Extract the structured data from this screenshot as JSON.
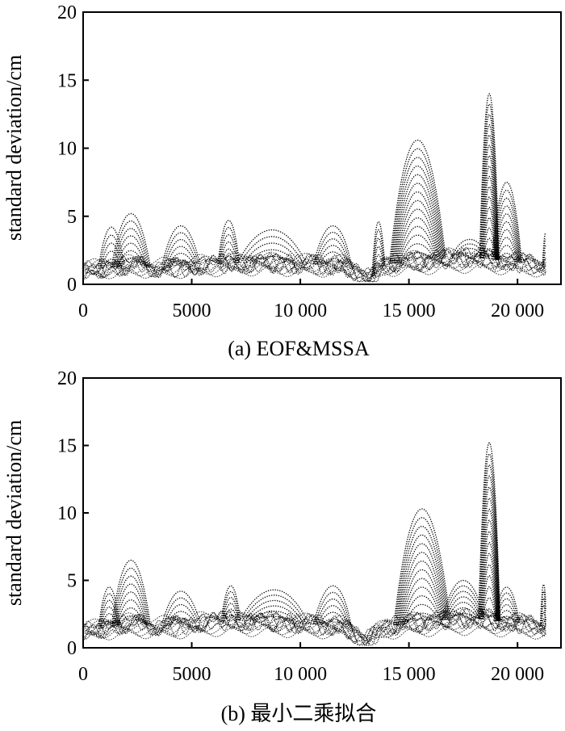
{
  "chart_data": [
    {
      "type": "line",
      "caption": "(a) EOF&MSSA",
      "ylabel": "standard deviation/cm",
      "xlabel": "",
      "xlim": [
        0,
        22000
      ],
      "ylim": [
        0,
        20
      ],
      "xticks": [
        0,
        5000,
        10000,
        15000,
        20000
      ],
      "xtick_labels": [
        "0",
        "5000",
        "10 000",
        "15 000",
        "20 000"
      ],
      "yticks": [
        0,
        5,
        10,
        15,
        20
      ],
      "ytick_labels": [
        "0",
        "5",
        "10",
        "15",
        "20"
      ],
      "grid": false,
      "marker_style": "dense dotted curves",
      "data_end_x": 21300,
      "floor": [
        {
          "x": 0,
          "y": 1.0
        },
        {
          "x": 2000,
          "y": 1.4
        },
        {
          "x": 4000,
          "y": 1.2
        },
        {
          "x": 6000,
          "y": 1.5
        },
        {
          "x": 8000,
          "y": 1.6
        },
        {
          "x": 10000,
          "y": 1.5
        },
        {
          "x": 12000,
          "y": 1.4
        },
        {
          "x": 13200,
          "y": 0.4
        },
        {
          "x": 14000,
          "y": 1.5
        },
        {
          "x": 16000,
          "y": 1.8
        },
        {
          "x": 18000,
          "y": 2.0
        },
        {
          "x": 20000,
          "y": 1.6
        },
        {
          "x": 21300,
          "y": 1.4
        }
      ],
      "peaks": [
        {
          "x": 1300,
          "y": 4.2,
          "width": 600
        },
        {
          "x": 2200,
          "y": 5.2,
          "width": 900
        },
        {
          "x": 4500,
          "y": 4.3,
          "width": 900
        },
        {
          "x": 6700,
          "y": 4.7,
          "width": 500
        },
        {
          "x": 8700,
          "y": 4.0,
          "width": 1600
        },
        {
          "x": 11500,
          "y": 4.3,
          "width": 900
        },
        {
          "x": 13600,
          "y": 4.6,
          "width": 300
        },
        {
          "x": 15400,
          "y": 10.6,
          "width": 1300
        },
        {
          "x": 17800,
          "y": 3.3,
          "width": 900
        },
        {
          "x": 18700,
          "y": 14.0,
          "width": 450
        },
        {
          "x": 19500,
          "y": 7.5,
          "width": 700
        },
        {
          "x": 21300,
          "y": 3.8,
          "width": 150
        }
      ]
    },
    {
      "type": "line",
      "caption": "(b) 最小二乘拟合",
      "ylabel": "standard deviation/cm",
      "xlabel": "",
      "xlim": [
        0,
        22000
      ],
      "ylim": [
        0,
        20
      ],
      "xticks": [
        0,
        5000,
        10000,
        15000,
        20000
      ],
      "xtick_labels": [
        "0",
        "5000",
        "10 000",
        "15 000",
        "20 000"
      ],
      "yticks": [
        0,
        5,
        10,
        15,
        20
      ],
      "ytick_labels": [
        "0",
        "5",
        "10",
        "15",
        "20"
      ],
      "grid": false,
      "marker_style": "dense dotted curves",
      "data_end_x": 21300,
      "floor": [
        {
          "x": 0,
          "y": 1.2
        },
        {
          "x": 2000,
          "y": 1.8
        },
        {
          "x": 4000,
          "y": 1.6
        },
        {
          "x": 6000,
          "y": 2.0
        },
        {
          "x": 8000,
          "y": 2.0
        },
        {
          "x": 10000,
          "y": 1.8
        },
        {
          "x": 12000,
          "y": 1.6
        },
        {
          "x": 13000,
          "y": 0.5
        },
        {
          "x": 14000,
          "y": 1.6
        },
        {
          "x": 16000,
          "y": 2.0
        },
        {
          "x": 18000,
          "y": 2.2
        },
        {
          "x": 20000,
          "y": 1.8
        },
        {
          "x": 21300,
          "y": 1.6
        }
      ],
      "peaks": [
        {
          "x": 1200,
          "y": 4.5,
          "width": 500
        },
        {
          "x": 2200,
          "y": 6.5,
          "width": 900
        },
        {
          "x": 4500,
          "y": 4.2,
          "width": 900
        },
        {
          "x": 6800,
          "y": 4.6,
          "width": 450
        },
        {
          "x": 8800,
          "y": 4.3,
          "width": 1600
        },
        {
          "x": 11500,
          "y": 4.6,
          "width": 900
        },
        {
          "x": 15600,
          "y": 10.3,
          "width": 1300
        },
        {
          "x": 17500,
          "y": 5.0,
          "width": 1000
        },
        {
          "x": 18700,
          "y": 15.2,
          "width": 500
        },
        {
          "x": 19500,
          "y": 4.5,
          "width": 600
        },
        {
          "x": 21200,
          "y": 4.7,
          "width": 150
        }
      ]
    }
  ]
}
